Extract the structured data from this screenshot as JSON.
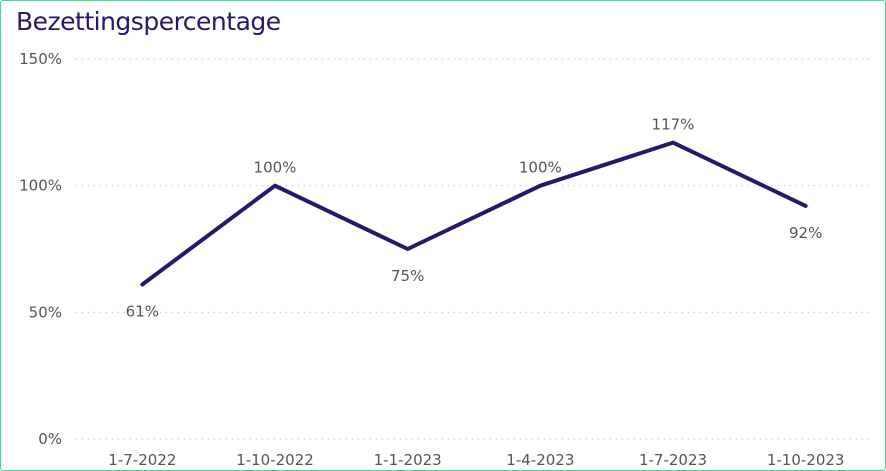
{
  "chart_data": {
    "type": "line",
    "title": "Bezettingspercentage",
    "xlabel": "",
    "ylabel": "",
    "x": [
      "1-7-2022",
      "1-10-2022",
      "1-1-2023",
      "1-4-2023",
      "1-7-2023",
      "1-10-2023"
    ],
    "values": [
      61,
      100,
      75,
      100,
      117,
      92
    ],
    "data_labels": [
      "61%",
      "100%",
      "75%",
      "100%",
      "117%",
      "92%"
    ],
    "ylim": [
      0,
      150
    ],
    "yticks": [
      0,
      50,
      100,
      150
    ],
    "ytick_labels": [
      "0%",
      "50%",
      "100%",
      "150%"
    ],
    "grid": "horizontal-dotted",
    "legend": "none",
    "colors": {
      "line": "#241a6b",
      "grid": "#b3b3b3",
      "text": "#555555",
      "border": "#3ddc97",
      "title": "#241a6b"
    }
  }
}
